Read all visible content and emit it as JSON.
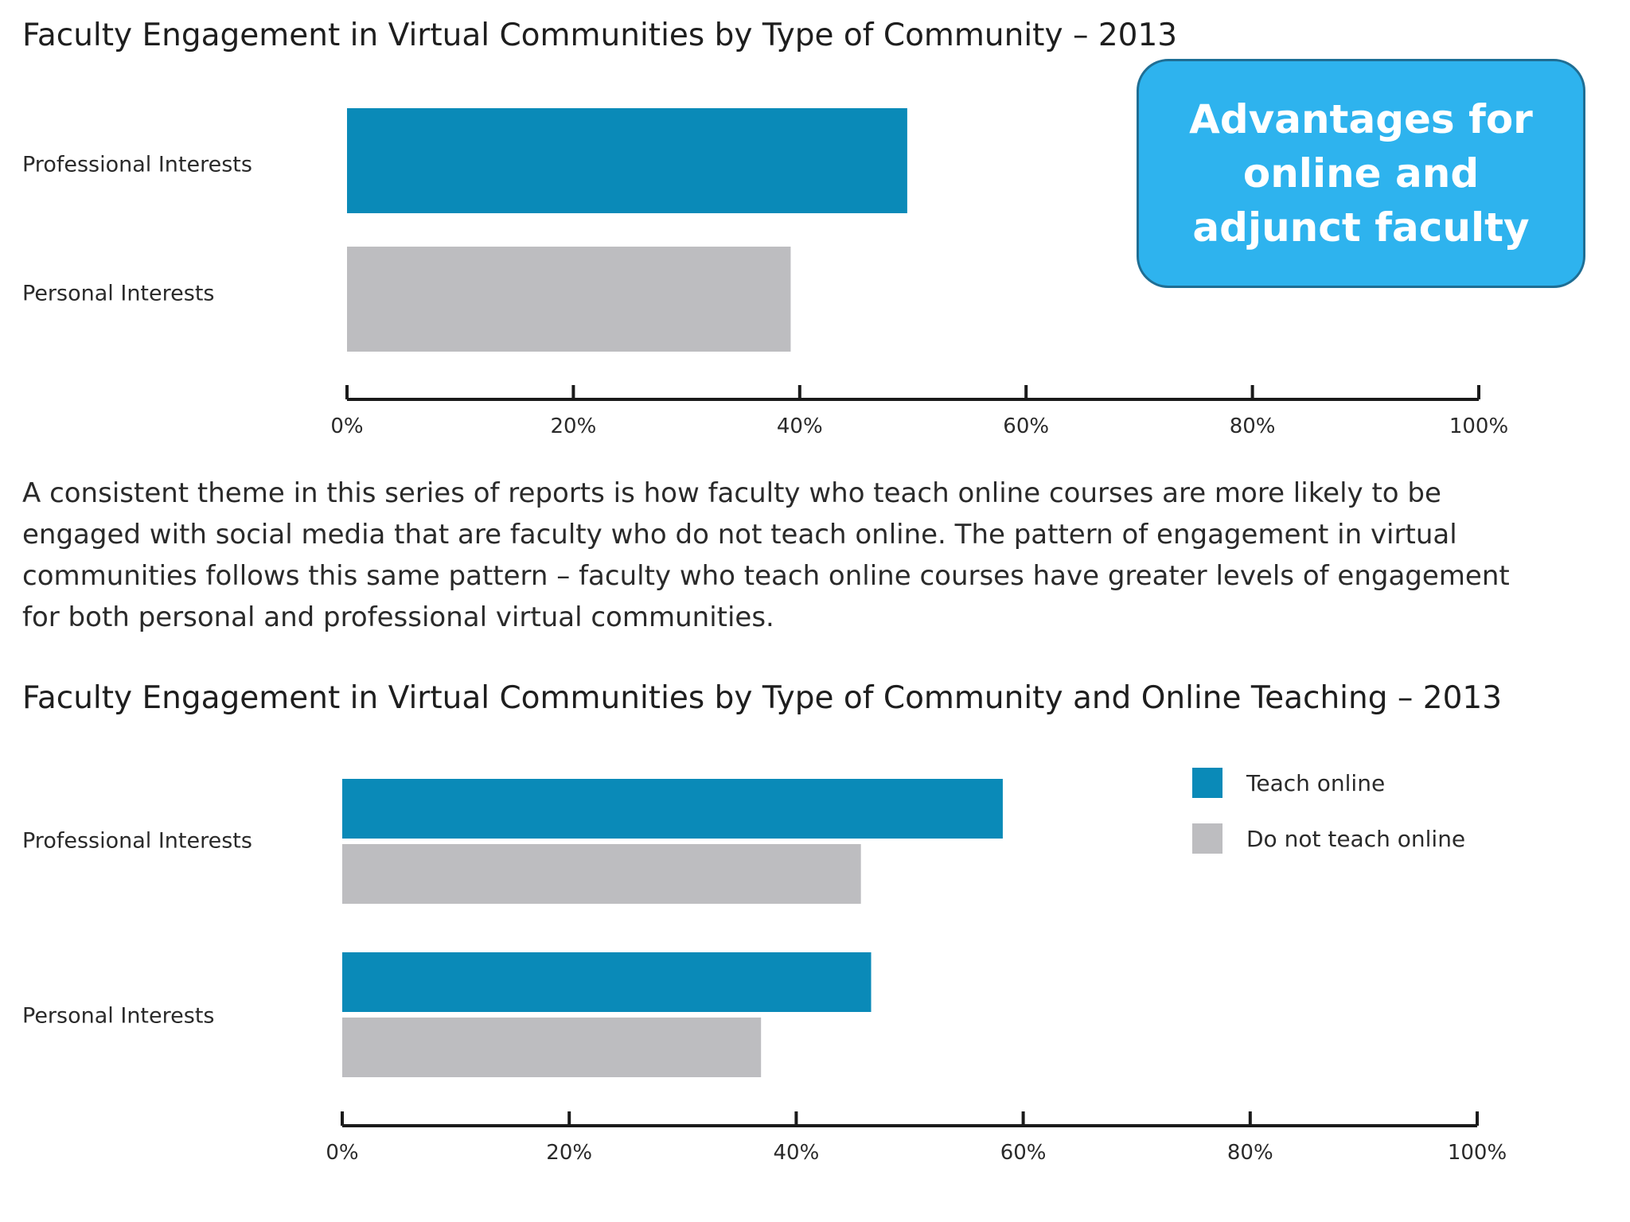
{
  "chart_data": [
    {
      "type": "bar",
      "orientation": "horizontal",
      "title": "Faculty Engagement in Virtual Communities by Type of Community – 2013",
      "categories": [
        "Professional Interests",
        "Personal Interests"
      ],
      "series": [
        {
          "values": [
            49.5,
            39.2
          ],
          "colors": [
            "#0a8ab8",
            "#bdbdc0"
          ]
        }
      ],
      "x_ticks": [
        "0%",
        "20%",
        "40%",
        "60%",
        "80%",
        "100%"
      ],
      "xlim": [
        0,
        100
      ],
      "grid": false
    },
    {
      "type": "bar",
      "orientation": "horizontal",
      "title": "Faculty Engagement in Virtual Communities by Type of Community and Online Teaching – 2013",
      "categories": [
        "Professional Interests",
        "Personal Interests"
      ],
      "series": [
        {
          "name": "Teach online",
          "color": "#0a8ab8",
          "values": [
            58.2,
            46.6
          ]
        },
        {
          "name": "Do not teach online",
          "color": "#bdbdc0",
          "values": [
            45.7,
            36.9
          ]
        }
      ],
      "x_ticks": [
        "0%",
        "20%",
        "40%",
        "60%",
        "80%",
        "100%"
      ],
      "xlim": [
        0,
        100
      ],
      "grid": false,
      "legend": "top-right"
    }
  ],
  "body_text": "A consistent theme in this series of reports is how faculty who teach online courses are more likely to be engaged with social media that are faculty who do not teach online. The pattern of engagement in virtual communities follows this same pattern – faculty who teach online courses have greater levels of engagement for both personal and professional virtual communities.",
  "callout": {
    "text": "Advantages for online and adjunct faculty",
    "background": "#2eb3ee",
    "border": "#1f6e94"
  }
}
